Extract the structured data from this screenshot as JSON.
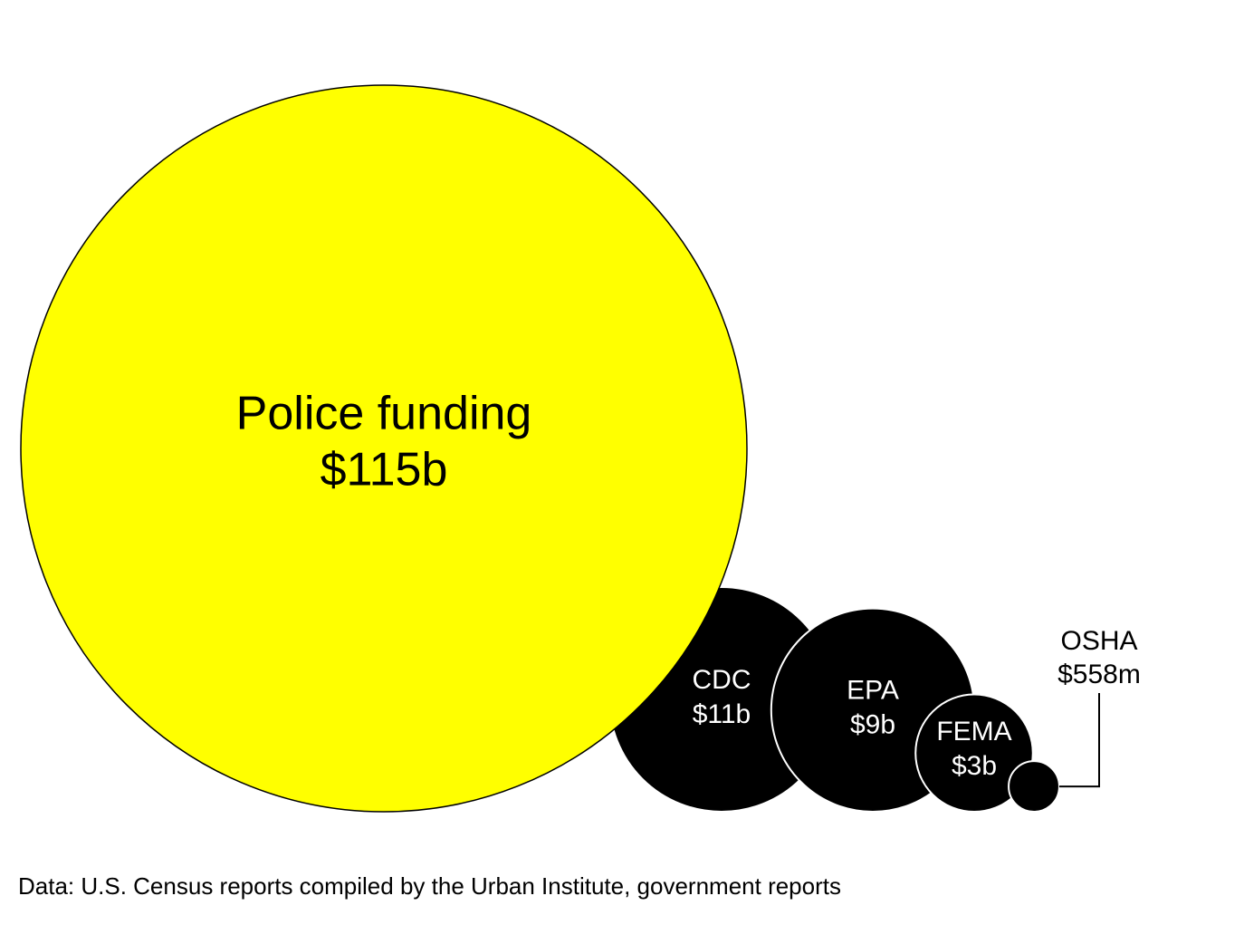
{
  "chart_data": {
    "type": "bubble",
    "categories": [
      "Police funding",
      "CDC",
      "EPA",
      "FEMA",
      "OSHA"
    ],
    "values": [
      115,
      11,
      9,
      3,
      0.558
    ],
    "value_labels": [
      "$115b",
      "$11b",
      "$9b",
      "$3b",
      "$558m"
    ],
    "colors": [
      "#ffff00",
      "#000000",
      "#000000",
      "#000000",
      "#000000"
    ],
    "source": "Data: U.S. Census reports compiled by the Urban Institute, government reports"
  }
}
